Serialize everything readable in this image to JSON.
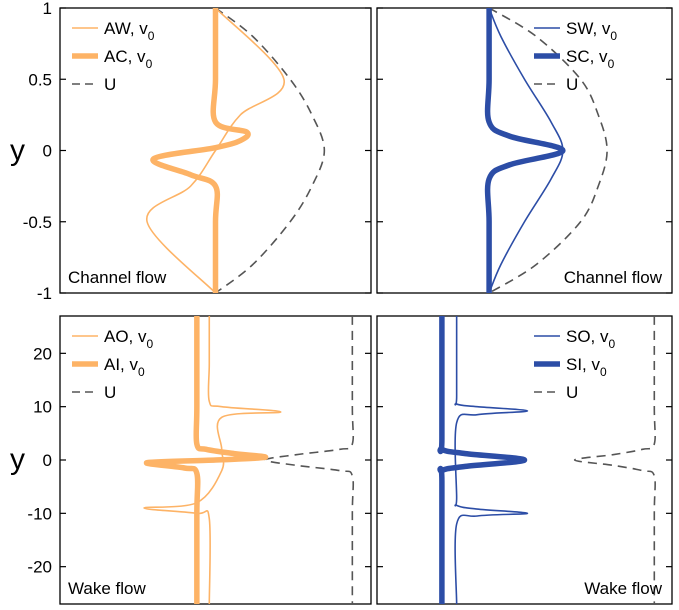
{
  "figure": {
    "y_axis_label": "y",
    "colors": {
      "orange": "#FDB366",
      "blue": "#2C4DA6",
      "gray": "#555555",
      "frame": "#000000"
    }
  },
  "chart_data": [
    {
      "type": "line",
      "panel": "top-left",
      "flow_label": "Channel flow",
      "xlim": [
        0,
        1
      ],
      "ylim": [
        -1,
        1
      ],
      "y_ticks": [
        "1",
        "0.5",
        "0",
        "-0.5",
        "-1"
      ],
      "y_tick_values": [
        1,
        0.5,
        0,
        -0.5,
        -1
      ],
      "grid": false,
      "legend_placement": "top-left",
      "legend": [
        {
          "main": "AW, v",
          "sub": "0",
          "style": "thin",
          "color": "orange"
        },
        {
          "main": "AC, v",
          "sub": "0",
          "style": "thick",
          "color": "orange"
        },
        {
          "main": "U",
          "sub": "",
          "style": "dashed",
          "color": "gray"
        }
      ],
      "series": [
        {
          "name": "AW, v0",
          "color": "orange",
          "style": "thin",
          "x": [
            0.5,
            0.72,
            0.58,
            0.5,
            0.42,
            0.28,
            0.5
          ],
          "y": [
            1,
            0.5,
            0.25,
            0,
            -0.25,
            -0.5,
            -1
          ]
        },
        {
          "name": "AC, v0",
          "color": "orange",
          "style": "thick",
          "x": [
            0.5,
            0.5,
            0.5,
            0.6,
            0.58,
            0.5,
            0.3,
            0.42,
            0.5,
            0.5,
            0.5
          ],
          "y": [
            1,
            0.5,
            0.2,
            0.13,
            0.07,
            0.02,
            -0.06,
            -0.17,
            -0.25,
            -0.5,
            -1
          ]
        },
        {
          "name": "U",
          "color": "gray",
          "style": "dashed",
          "x": [
            0.5,
            0.62,
            0.74,
            0.81,
            0.85,
            0.81,
            0.74,
            0.62,
            0.5
          ],
          "y": [
            1,
            0.8,
            0.5,
            0.25,
            0,
            -0.25,
            -0.5,
            -0.8,
            -1
          ]
        }
      ]
    },
    {
      "type": "line",
      "panel": "top-right",
      "flow_label": "Channel flow",
      "xlim": [
        0,
        1
      ],
      "ylim": [
        -1,
        1
      ],
      "grid": false,
      "legend_placement": "top-right",
      "legend": [
        {
          "main": "SW, v",
          "sub": "0",
          "style": "thin",
          "color": "blue"
        },
        {
          "main": "SC, v",
          "sub": "0",
          "style": "thick",
          "color": "blue"
        },
        {
          "main": "U",
          "sub": "",
          "style": "dashed",
          "color": "gray"
        }
      ],
      "series": [
        {
          "name": "SW, v0",
          "color": "blue",
          "style": "thin",
          "x": [
            0.38,
            0.42,
            0.5,
            0.59,
            0.63,
            0.59,
            0.5,
            0.42,
            0.38
          ],
          "y": [
            1,
            0.8,
            0.5,
            0.2,
            0,
            -0.2,
            -0.5,
            -0.8,
            -1
          ]
        },
        {
          "name": "SC, v0",
          "color": "blue",
          "style": "thick",
          "x": [
            0.38,
            0.38,
            0.38,
            0.45,
            0.63,
            0.45,
            0.38,
            0.38,
            0.38
          ],
          "y": [
            1,
            0.5,
            0.2,
            0.1,
            0,
            -0.1,
            -0.2,
            -0.5,
            -1
          ]
        },
        {
          "name": "U",
          "color": "gray",
          "style": "dashed",
          "x": [
            0.38,
            0.54,
            0.69,
            0.75,
            0.78,
            0.75,
            0.69,
            0.54,
            0.38
          ],
          "y": [
            1,
            0.8,
            0.5,
            0.25,
            0,
            -0.25,
            -0.5,
            -0.8,
            -1
          ]
        }
      ]
    },
    {
      "type": "line",
      "panel": "bottom-left",
      "flow_label": "Wake flow",
      "xlim": [
        0,
        1
      ],
      "ylim": [
        -27,
        27
      ],
      "y_ticks": [
        "20",
        "10",
        "0",
        "-10",
        "-20"
      ],
      "y_tick_values": [
        20,
        10,
        0,
        -10,
        -20
      ],
      "grid": false,
      "legend_placement": "top-left",
      "legend": [
        {
          "main": "AO, v",
          "sub": "0",
          "style": "thin",
          "color": "orange"
        },
        {
          "main": "AI, v",
          "sub": "0",
          "style": "thick",
          "color": "orange"
        },
        {
          "main": "U",
          "sub": "",
          "style": "dashed",
          "color": "gray"
        }
      ],
      "series": [
        {
          "name": "AO, v0",
          "color": "orange",
          "style": "thin",
          "x": [
            0.48,
            0.48,
            0.48,
            0.52,
            0.71,
            0.52,
            0.52,
            0.52,
            0.44,
            0.27,
            0.44,
            0.48,
            0.48
          ],
          "y": [
            27,
            18,
            11,
            10,
            9,
            8,
            2,
            -2,
            -8,
            -9,
            -10,
            -11,
            -27
          ]
        },
        {
          "name": "AI, v0",
          "color": "orange",
          "style": "thick",
          "x": [
            0.44,
            0.44,
            0.44,
            0.47,
            0.56,
            0.66,
            0.5,
            0.28,
            0.4,
            0.44,
            0.44,
            0.44
          ],
          "y": [
            27,
            10,
            3,
            2,
            1.2,
            0.5,
            0,
            -0.5,
            -1.5,
            -2.5,
            -10,
            -27
          ]
        },
        {
          "name": "U",
          "color": "gray",
          "style": "dashed",
          "x": [
            0.94,
            0.94,
            0.94,
            0.9,
            0.76,
            0.66,
            0.76,
            0.9,
            0.94,
            0.94,
            0.94
          ],
          "y": [
            27,
            10,
            3,
            2,
            1,
            0,
            -1,
            -2,
            -3,
            -10,
            -27
          ]
        }
      ]
    },
    {
      "type": "line",
      "panel": "bottom-right",
      "flow_label": "Wake flow",
      "xlim": [
        0,
        1
      ],
      "ylim": [
        -27,
        27
      ],
      "grid": false,
      "legend_placement": "top-right",
      "legend": [
        {
          "main": "SO, v",
          "sub": "0",
          "style": "thin",
          "color": "blue"
        },
        {
          "main": "SI, v",
          "sub": "0",
          "style": "thick",
          "color": "blue"
        },
        {
          "main": "U",
          "sub": "",
          "style": "dashed",
          "color": "gray"
        }
      ],
      "series": [
        {
          "name": "SO, v0",
          "color": "blue",
          "style": "thin",
          "x": [
            0.27,
            0.27,
            0.27,
            0.34,
            0.51,
            0.34,
            0.27,
            0.27,
            0.27,
            0.34,
            0.51,
            0.34,
            0.27,
            0.27
          ],
          "y": [
            27,
            12,
            10.5,
            10,
            9.2,
            8.5,
            7,
            -7,
            -8.5,
            -9.2,
            -10,
            -10.5,
            -12,
            -27
          ]
        },
        {
          "name": "SI, v0",
          "color": "blue",
          "style": "thick",
          "x": [
            0.22,
            0.22,
            0.22,
            0.3,
            0.5,
            0.3,
            0.22,
            0.22,
            0.22
          ],
          "y": [
            27,
            4,
            2,
            1.2,
            0,
            -1.2,
            -2,
            -4,
            -27
          ]
        },
        {
          "name": "U",
          "color": "gray",
          "style": "dashed",
          "x": [
            0.94,
            0.94,
            0.94,
            0.9,
            0.8,
            0.67,
            0.8,
            0.9,
            0.94,
            0.94,
            0.94
          ],
          "y": [
            27,
            10,
            3,
            2,
            1,
            0,
            -1,
            -2,
            -3,
            -10,
            -27
          ]
        }
      ]
    }
  ]
}
